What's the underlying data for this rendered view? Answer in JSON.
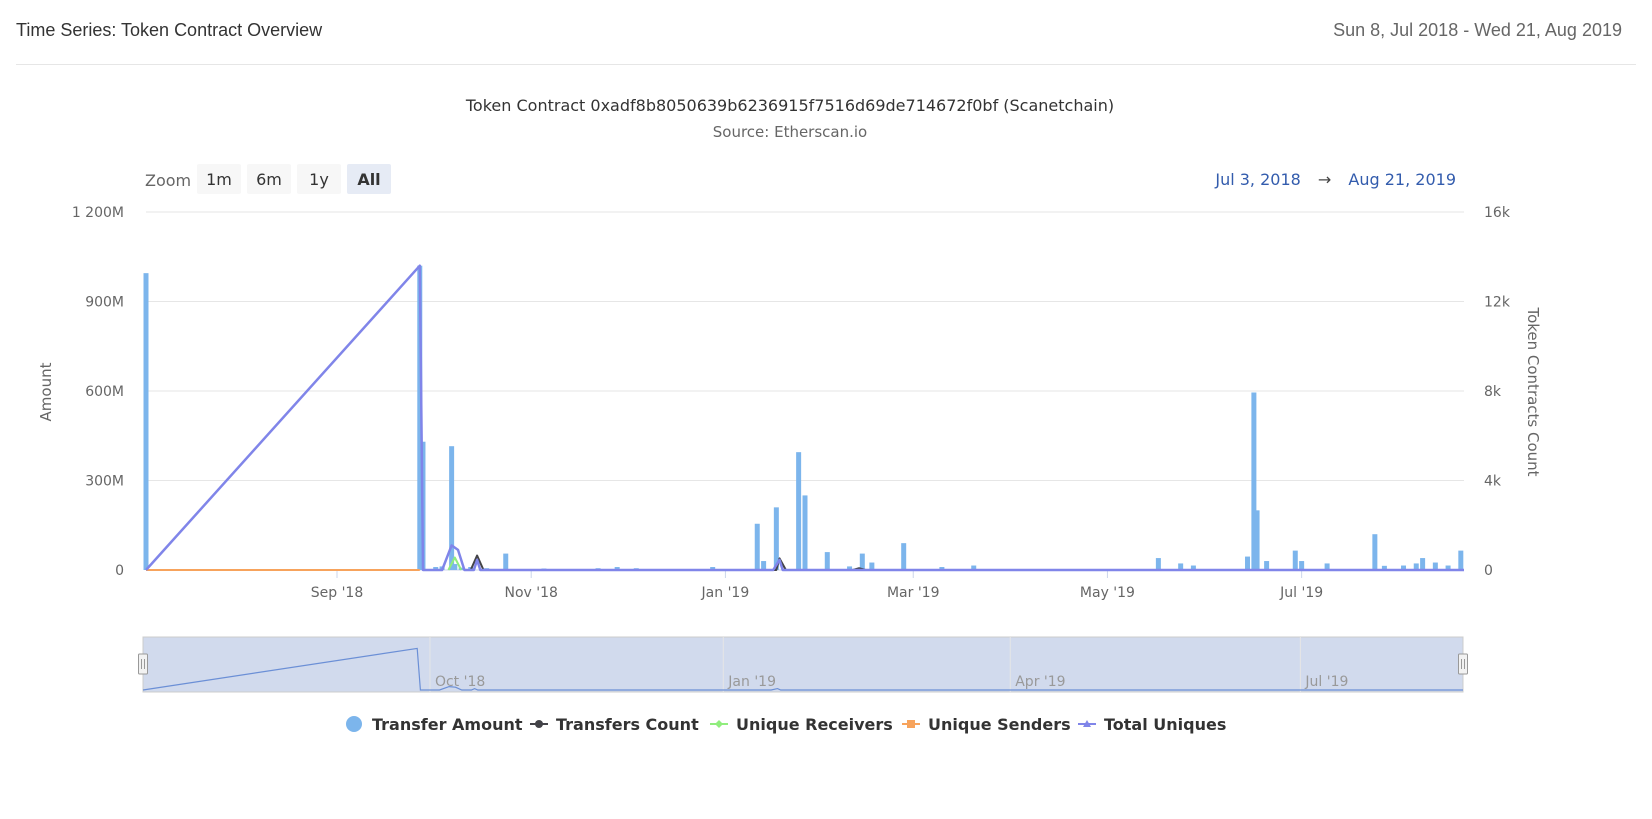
{
  "header": {
    "title": "Time Series: Token Contract Overview",
    "date_range": "Sun 8, Jul 2018 - Wed 21, Aug 2019"
  },
  "chart_data": {
    "type": "bar",
    "title": "Token Contract 0xadf8b8050639b6236915f7516d69de714672f0bf (Scanetchain)",
    "subtitle": "Source: Etherscan.io",
    "xlabel": "",
    "ylabel": "Amount",
    "ylabel_right": "Token Contracts Count",
    "x_range": [
      "2018-07-03",
      "2019-08-21"
    ],
    "x_ticks": [
      {
        "date": "2018-09-01",
        "label": "Sep '18"
      },
      {
        "date": "2018-11-01",
        "label": "Nov '18"
      },
      {
        "date": "2019-01-01",
        "label": "Jan '19"
      },
      {
        "date": "2019-03-01",
        "label": "Mar '19"
      },
      {
        "date": "2019-05-01",
        "label": "May '19"
      },
      {
        "date": "2019-07-01",
        "label": "Jul '19"
      }
    ],
    "ylim": [
      0,
      1200000000
    ],
    "y_ticks": [
      {
        "value": 0,
        "label": "0"
      },
      {
        "value": 300000000,
        "label": "300M"
      },
      {
        "value": 600000000,
        "label": "600M"
      },
      {
        "value": 900000000,
        "label": "900M"
      },
      {
        "value": 1200000000,
        "label": "1 200M"
      }
    ],
    "ylim_right": [
      0,
      16000
    ],
    "y_ticks_right": [
      {
        "value": 0,
        "label": "0"
      },
      {
        "value": 4000,
        "label": "4k"
      },
      {
        "value": 8000,
        "label": "8k"
      },
      {
        "value": 12000,
        "label": "12k"
      },
      {
        "value": 16000,
        "label": "16k"
      }
    ],
    "grid": true,
    "legend_position": "bottom",
    "zoom": {
      "label": "Zoom",
      "buttons": [
        "1m",
        "6m",
        "1y",
        "All"
      ],
      "selected": "All"
    },
    "range_display": {
      "from": "Jul 3, 2018",
      "arrow": "→",
      "to": "Aug 21, 2019"
    },
    "navigator": {
      "labels": [
        {
          "date": "2018-10-01",
          "label": "Oct '18"
        },
        {
          "date": "2019-01-01",
          "label": "Jan '19"
        },
        {
          "date": "2019-04-01",
          "label": "Apr '19"
        },
        {
          "date": "2019-07-01",
          "label": "Jul '19"
        }
      ]
    },
    "series": [
      {
        "name": "Transfer Amount",
        "axis": "left",
        "kind": "bar",
        "color": "#7cb5ec",
        "points": [
          [
            "2018-07-03",
            995000000
          ],
          [
            "2018-09-27",
            1020000000
          ],
          [
            "2018-09-28",
            430000000
          ],
          [
            "2018-10-02",
            10000000
          ],
          [
            "2018-10-04",
            12000000
          ],
          [
            "2018-10-07",
            415000000
          ],
          [
            "2018-10-08",
            20000000
          ],
          [
            "2018-10-10",
            8000000
          ],
          [
            "2018-10-13",
            10000000
          ],
          [
            "2018-10-18",
            6000000
          ],
          [
            "2018-10-24",
            55000000
          ],
          [
            "2018-11-05",
            5000000
          ],
          [
            "2018-11-22",
            6000000
          ],
          [
            "2018-11-28",
            10000000
          ],
          [
            "2018-12-04",
            6000000
          ],
          [
            "2018-12-28",
            10000000
          ],
          [
            "2019-01-11",
            155000000
          ],
          [
            "2019-01-13",
            30000000
          ],
          [
            "2019-01-17",
            210000000
          ],
          [
            "2019-01-24",
            395000000
          ],
          [
            "2019-01-26",
            250000000
          ],
          [
            "2019-02-02",
            60000000
          ],
          [
            "2019-02-09",
            12000000
          ],
          [
            "2019-02-13",
            55000000
          ],
          [
            "2019-02-16",
            25000000
          ],
          [
            "2019-02-26",
            90000000
          ],
          [
            "2019-03-10",
            10000000
          ],
          [
            "2019-03-20",
            15000000
          ],
          [
            "2019-05-17",
            40000000
          ],
          [
            "2019-05-24",
            22000000
          ],
          [
            "2019-05-28",
            15000000
          ],
          [
            "2019-06-14",
            45000000
          ],
          [
            "2019-06-16",
            595000000
          ],
          [
            "2019-06-17",
            200000000
          ],
          [
            "2019-06-20",
            30000000
          ],
          [
            "2019-06-29",
            65000000
          ],
          [
            "2019-07-01",
            30000000
          ],
          [
            "2019-07-09",
            22000000
          ],
          [
            "2019-07-24",
            120000000
          ],
          [
            "2019-07-27",
            14000000
          ],
          [
            "2019-08-02",
            15000000
          ],
          [
            "2019-08-06",
            22000000
          ],
          [
            "2019-08-08",
            40000000
          ],
          [
            "2019-08-12",
            25000000
          ],
          [
            "2019-08-16",
            15000000
          ],
          [
            "2019-08-20",
            65000000
          ]
        ]
      },
      {
        "name": "Transfers Count",
        "axis": "right",
        "kind": "line",
        "color": "#434348",
        "points": [
          [
            "2018-10-13",
            0
          ],
          [
            "2018-10-15",
            650
          ],
          [
            "2018-10-17",
            0
          ],
          [
            "2019-01-17",
            0
          ],
          [
            "2019-01-18",
            520
          ],
          [
            "2019-01-20",
            0
          ],
          [
            "2019-02-10",
            0
          ],
          [
            "2019-02-12",
            80
          ],
          [
            "2019-02-14",
            0
          ]
        ]
      },
      {
        "name": "Unique Receivers",
        "axis": "right",
        "kind": "line",
        "color": "#90ed7d",
        "points": [
          [
            "2018-10-06",
            0
          ],
          [
            "2018-10-08",
            560
          ],
          [
            "2018-10-10",
            0
          ]
        ]
      },
      {
        "name": "Unique Senders",
        "axis": "right",
        "kind": "line",
        "color": "#f7a35c",
        "points": [
          [
            "2018-07-03",
            0
          ],
          [
            "2018-09-27",
            0
          ]
        ]
      },
      {
        "name": "Total Uniques",
        "axis": "right",
        "kind": "line",
        "color": "#8085e9",
        "points": [
          [
            "2018-07-03",
            0
          ],
          [
            "2018-09-27",
            13600
          ],
          [
            "2018-09-28",
            0
          ],
          [
            "2018-10-04",
            0
          ],
          [
            "2018-10-07",
            1100
          ],
          [
            "2018-10-09",
            900
          ],
          [
            "2018-10-11",
            0
          ],
          [
            "2018-10-14",
            0
          ],
          [
            "2018-10-15",
            450
          ],
          [
            "2018-10-16",
            0
          ],
          [
            "2019-01-16",
            0
          ],
          [
            "2019-01-18",
            450
          ],
          [
            "2019-01-19",
            0
          ],
          [
            "2019-08-21",
            0
          ]
        ]
      }
    ]
  },
  "legend": [
    {
      "label": "Transfer Amount",
      "color": "#7cb5ec",
      "symbol": "circle"
    },
    {
      "label": "Transfers Count",
      "color": "#434348",
      "symbol": "circle"
    },
    {
      "label": "Unique Receivers",
      "color": "#90ed7d",
      "symbol": "diamond"
    },
    {
      "label": "Unique Senders",
      "color": "#f7a35c",
      "symbol": "square"
    },
    {
      "label": "Total Uniques",
      "color": "#8085e9",
      "symbol": "triangle"
    }
  ]
}
